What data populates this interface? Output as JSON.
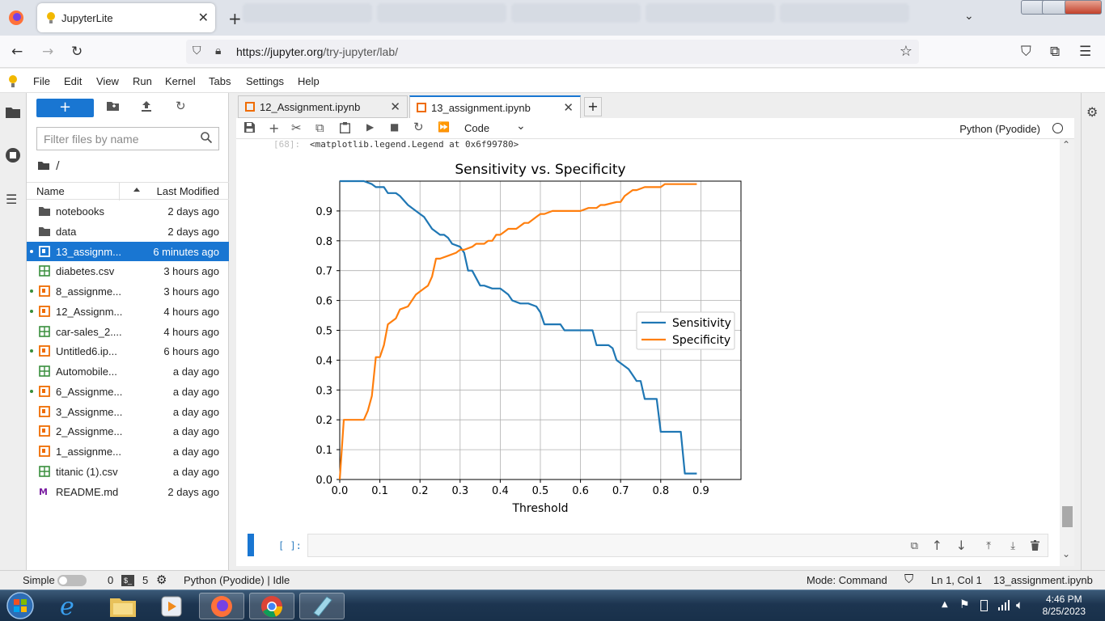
{
  "browser": {
    "tab_title": "JupyterLite",
    "url_host": "https://jupyter.org",
    "url_path": "/try-jupyter/lab/"
  },
  "menu": [
    "File",
    "Edit",
    "View",
    "Run",
    "Kernel",
    "Tabs",
    "Settings",
    "Help"
  ],
  "filebrowser": {
    "new_label": "+",
    "filter_placeholder": "Filter files by name",
    "path": "/",
    "col_name": "Name",
    "col_modified": "Last Modified",
    "files": [
      {
        "name": "notebooks",
        "modified": "2 days ago",
        "type": "folder",
        "running": false,
        "selected": false
      },
      {
        "name": "data",
        "modified": "2 days ago",
        "type": "folder",
        "running": false,
        "selected": false
      },
      {
        "name": "13_assignm...",
        "modified": "6 minutes ago",
        "type": "notebook",
        "running": true,
        "selected": true
      },
      {
        "name": "diabetes.csv",
        "modified": "3 hours ago",
        "type": "csv",
        "running": false,
        "selected": false
      },
      {
        "name": "8_assignme...",
        "modified": "3 hours ago",
        "type": "notebook",
        "running": true,
        "selected": false
      },
      {
        "name": "12_Assignm...",
        "modified": "4 hours ago",
        "type": "notebook",
        "running": true,
        "selected": false
      },
      {
        "name": "car-sales_2....",
        "modified": "4 hours ago",
        "type": "csv",
        "running": false,
        "selected": false
      },
      {
        "name": "Untitled6.ip...",
        "modified": "6 hours ago",
        "type": "notebook",
        "running": true,
        "selected": false
      },
      {
        "name": "Automobile...",
        "modified": "a day ago",
        "type": "csv",
        "running": false,
        "selected": false
      },
      {
        "name": "6_Assignme...",
        "modified": "a day ago",
        "type": "notebook",
        "running": true,
        "selected": false
      },
      {
        "name": "3_Assignme...",
        "modified": "a day ago",
        "type": "notebook",
        "running": false,
        "selected": false
      },
      {
        "name": "2_Assignme...",
        "modified": "a day ago",
        "type": "notebook",
        "running": false,
        "selected": false
      },
      {
        "name": "1_assignme...",
        "modified": "a day ago",
        "type": "notebook",
        "running": false,
        "selected": false
      },
      {
        "name": "titanic (1).csv",
        "modified": "a day ago",
        "type": "csv",
        "running": false,
        "selected": false
      },
      {
        "name": "README.md",
        "modified": "2 days ago",
        "type": "markdown",
        "running": false,
        "selected": false
      }
    ]
  },
  "doc_tabs": [
    {
      "label": "12_Assignment.ipynb",
      "active": false
    },
    {
      "label": "13_assignment.ipynb",
      "active": true
    }
  ],
  "toolbar": {
    "cell_type": "Code",
    "kernel": "Python (Pyodide)"
  },
  "output": {
    "prompt": "[68]:",
    "text": "<matplotlib.legend.Legend at 0x6f99780>"
  },
  "input_cell": {
    "prompt": "[ ]:"
  },
  "status": {
    "mode_label": "Simple",
    "terminals": "0",
    "kernels": "5",
    "kernel_status": "Python (Pyodide) | Idle",
    "mode": "Mode: Command",
    "position": "Ln 1, Col 1",
    "file": "13_assignment.ipynb"
  },
  "taskbar": {
    "time": "4:46 PM",
    "date": "8/25/2023"
  },
  "colors": {
    "accent": "#1976d2",
    "sensitivity": "#1f77b4",
    "specificity": "#ff7f0e"
  },
  "chart_data": {
    "type": "line",
    "title": "Sensitivity vs. Specificity",
    "xlabel": "Threshold",
    "ylabel": "",
    "xlim": [
      0.0,
      1.0
    ],
    "ylim": [
      0.0,
      1.0
    ],
    "xticks": [
      "0.0",
      "0.1",
      "0.2",
      "0.3",
      "0.4",
      "0.5",
      "0.6",
      "0.7",
      "0.8",
      "0.9"
    ],
    "yticks": [
      "0.0",
      "0.1",
      "0.2",
      "0.3",
      "0.4",
      "0.5",
      "0.6",
      "0.7",
      "0.8",
      "0.9"
    ],
    "grid": true,
    "legend": "center-right",
    "series": [
      {
        "name": "Sensitivity",
        "x": [
          0.0,
          0.06,
          0.08,
          0.09,
          0.11,
          0.12,
          0.14,
          0.15,
          0.17,
          0.18,
          0.2,
          0.21,
          0.23,
          0.25,
          0.26,
          0.27,
          0.28,
          0.3,
          0.31,
          0.32,
          0.33,
          0.35,
          0.36,
          0.38,
          0.4,
          0.41,
          0.42,
          0.43,
          0.45,
          0.47,
          0.49,
          0.5,
          0.51,
          0.55,
          0.56,
          0.6,
          0.61,
          0.63,
          0.64,
          0.67,
          0.68,
          0.69,
          0.7,
          0.72,
          0.73,
          0.74,
          0.75,
          0.76,
          0.79,
          0.8,
          0.84,
          0.85,
          0.86,
          0.89
        ],
        "y": [
          1.0,
          1.0,
          0.99,
          0.98,
          0.98,
          0.96,
          0.96,
          0.95,
          0.92,
          0.91,
          0.89,
          0.88,
          0.84,
          0.82,
          0.82,
          0.81,
          0.79,
          0.78,
          0.76,
          0.7,
          0.7,
          0.65,
          0.65,
          0.64,
          0.64,
          0.63,
          0.62,
          0.6,
          0.59,
          0.59,
          0.58,
          0.56,
          0.52,
          0.52,
          0.5,
          0.5,
          0.5,
          0.5,
          0.45,
          0.45,
          0.44,
          0.4,
          0.39,
          0.37,
          0.35,
          0.33,
          0.33,
          0.27,
          0.27,
          0.16,
          0.16,
          0.16,
          0.02,
          0.02
        ]
      },
      {
        "name": "Specificity",
        "x": [
          0.0,
          0.01,
          0.06,
          0.07,
          0.08,
          0.09,
          0.1,
          0.11,
          0.12,
          0.14,
          0.15,
          0.17,
          0.19,
          0.2,
          0.21,
          0.22,
          0.23,
          0.24,
          0.25,
          0.27,
          0.29,
          0.3,
          0.31,
          0.33,
          0.34,
          0.36,
          0.37,
          0.38,
          0.39,
          0.4,
          0.41,
          0.42,
          0.44,
          0.46,
          0.47,
          0.49,
          0.5,
          0.51,
          0.53,
          0.54,
          0.6,
          0.62,
          0.64,
          0.65,
          0.66,
          0.69,
          0.7,
          0.71,
          0.73,
          0.74,
          0.76,
          0.8,
          0.81,
          0.85,
          0.86,
          0.89
        ],
        "y": [
          0.0,
          0.2,
          0.2,
          0.23,
          0.28,
          0.41,
          0.41,
          0.45,
          0.52,
          0.54,
          0.57,
          0.58,
          0.62,
          0.63,
          0.64,
          0.65,
          0.68,
          0.74,
          0.74,
          0.75,
          0.76,
          0.77,
          0.77,
          0.78,
          0.79,
          0.79,
          0.8,
          0.8,
          0.82,
          0.82,
          0.83,
          0.84,
          0.84,
          0.86,
          0.86,
          0.88,
          0.89,
          0.89,
          0.9,
          0.9,
          0.9,
          0.91,
          0.91,
          0.92,
          0.92,
          0.93,
          0.93,
          0.95,
          0.97,
          0.97,
          0.98,
          0.98,
          0.99,
          0.99,
          0.99,
          0.99
        ]
      }
    ]
  }
}
